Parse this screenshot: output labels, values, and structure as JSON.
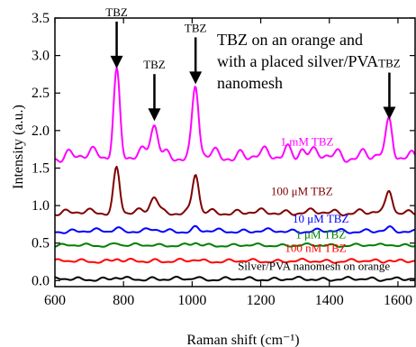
{
  "chart_data": {
    "type": "line",
    "xlabel": "Raman shift (cm⁻¹)",
    "ylabel": "Intensity (a.u.)",
    "xlim": [
      600,
      1650
    ],
    "ylim": [
      -0.08,
      3.5
    ],
    "x_ticks": [
      600,
      800,
      1000,
      1200,
      1400,
      1600
    ],
    "x_tick_labels": [
      "600",
      "800",
      "1000",
      "1200",
      "1400",
      "1600"
    ],
    "y_ticks": [
      0.0,
      0.5,
      1.0,
      1.5,
      2.0,
      2.5,
      3.0,
      3.5
    ],
    "y_tick_labels": [
      "0.0",
      "0.5",
      "1.0",
      "1.5",
      "2.0",
      "2.5",
      "3.0",
      "3.5"
    ],
    "grid": false,
    "annotation_lines": [
      "TBZ on an orange and",
      "with a placed silver/PVA",
      "nanomesh"
    ],
    "peak_label": "TBZ",
    "peak_markers": [
      {
        "x": 780,
        "peak_y": 2.78
      },
      {
        "x": 890,
        "peak_y": 2.08
      },
      {
        "x": 1010,
        "peak_y": 2.57
      },
      {
        "x": 1575,
        "peak_y": 2.1
      }
    ],
    "peaks_x": [
      780,
      890,
      1010,
      1575
    ],
    "series": [
      {
        "name": "1 mM TBZ",
        "color": "#ff00ff",
        "baseline": 1.67,
        "peak_heights": [
          1.11,
          0.41,
          0.9,
          0.43
        ],
        "wobble": 0.11,
        "phase": 1.3
      },
      {
        "name": "100 μM TBZ",
        "color": "#800000",
        "baseline": 0.91,
        "peak_heights": [
          0.59,
          0.22,
          0.51,
          0.3
        ],
        "wobble": 0.05,
        "phase": 2.1
      },
      {
        "name": "10 μM TBZ",
        "color": "#0000ff",
        "baseline": 0.66,
        "peak_heights": [
          0.05,
          0.02,
          0.04,
          0.03
        ],
        "wobble": 0.035,
        "phase": 0.4
      },
      {
        "name": "1 μM TBZ",
        "color": "#008000",
        "baseline": 0.47,
        "peak_heights": [
          0.03,
          0.01,
          0.03,
          0.02
        ],
        "wobble": 0.025,
        "phase": 3.0
      },
      {
        "name": "100 nM TBZ",
        "color": "#ff0000",
        "baseline": 0.26,
        "peak_heights": [
          0.03,
          0.01,
          0.02,
          0.02
        ],
        "wobble": 0.03,
        "phase": 4.2
      },
      {
        "name": "Silver/PVA nanomesh on orange",
        "color": "#000000",
        "baseline": 0.02,
        "peak_heights": [
          0.02,
          0.01,
          0.02,
          0.01
        ],
        "wobble": 0.03,
        "phase": 5.1
      }
    ],
    "series_label_positions": [
      {
        "x": 1335,
        "y": 1.8
      },
      {
        "x": 1320,
        "y": 1.14
      },
      {
        "x": 1375,
        "y": 0.77
      },
      {
        "x": 1375,
        "y": 0.56
      },
      {
        "x": 1360,
        "y": 0.38
      },
      {
        "x": 1355,
        "y": 0.14
      }
    ]
  }
}
